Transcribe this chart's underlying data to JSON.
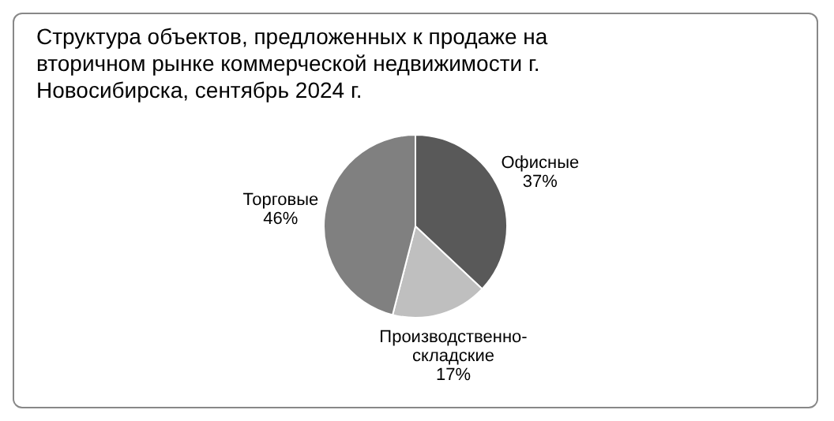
{
  "chart_data": {
    "type": "pie",
    "title": "Структура объектов, предложенных к продаже на вторичном рынке коммерческой недвижимости г. Новосибирска, сентябрь 2024 г.",
    "categories": [
      "Офисные",
      "Производственно-складские",
      "Торговые"
    ],
    "values": [
      37,
      17,
      46
    ],
    "value_labels": [
      "37%",
      "17%",
      "46%"
    ],
    "colors": [
      "#595959",
      "#bfbfbf",
      "#808080"
    ]
  }
}
